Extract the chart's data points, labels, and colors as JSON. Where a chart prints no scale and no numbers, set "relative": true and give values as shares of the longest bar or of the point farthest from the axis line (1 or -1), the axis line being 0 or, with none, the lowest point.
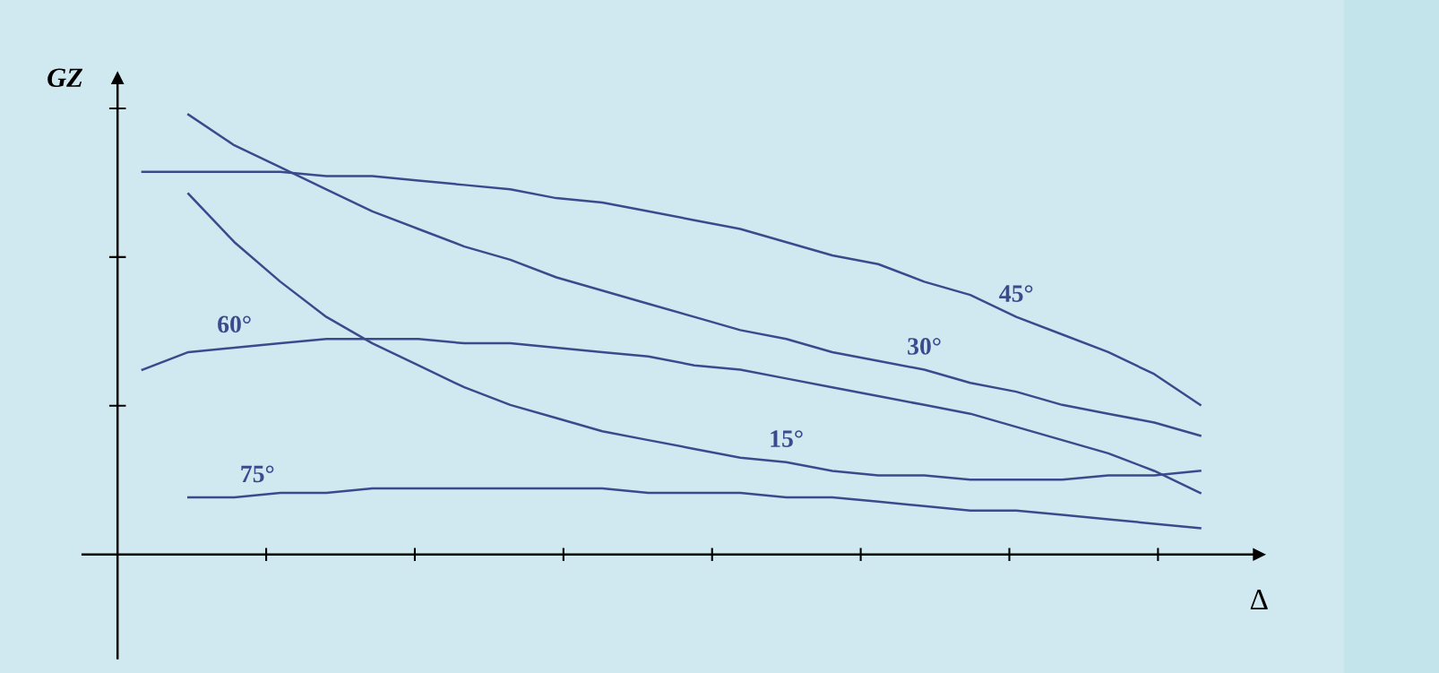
{
  "chart_data": {
    "type": "line",
    "relative": true,
    "xlabel": "Δ",
    "ylabel": "GZ",
    "categories": [
      null,
      null,
      null,
      null,
      null,
      null,
      null,
      null,
      null,
      null,
      null,
      null,
      null,
      null,
      null,
      null,
      null,
      null,
      null,
      null,
      null,
      null,
      null,
      null
    ],
    "series": [
      {
        "name": "45°",
        "color": "#3b4a8c",
        "values": [
          0.87,
          0.87,
          0.87,
          0.87,
          0.86,
          0.86,
          0.85,
          0.84,
          0.83,
          0.81,
          0.8,
          0.78,
          0.76,
          0.74,
          0.71,
          0.68,
          0.66,
          0.62,
          0.59,
          0.54,
          0.5,
          0.46,
          0.41,
          0.34
        ]
      },
      {
        "name": "30°",
        "color": "#3b4a8c",
        "values": [
          null,
          1,
          0.93,
          0.88,
          0.83,
          0.78,
          0.74,
          0.7,
          0.67,
          0.63,
          0.6,
          0.57,
          0.54,
          0.51,
          0.49,
          0.46,
          0.44,
          0.42,
          0.39,
          0.37,
          0.34,
          0.32,
          0.3,
          0.27
        ]
      },
      {
        "name": "15°",
        "color": "#3b4a8c",
        "values": [
          null,
          0.82,
          0.71,
          0.62,
          0.54,
          0.48,
          0.43,
          0.38,
          0.34,
          0.31,
          0.28,
          0.26,
          0.24,
          0.22,
          0.21,
          0.19,
          0.18,
          0.18,
          0.17,
          0.17,
          0.17,
          0.18,
          0.18,
          0.19
        ]
      },
      {
        "name": "60°",
        "color": "#3b4a8c",
        "values": [
          0.42,
          0.46,
          0.47,
          0.48,
          0.49,
          0.49,
          0.49,
          0.48,
          0.48,
          0.47,
          0.46,
          0.45,
          0.43,
          0.42,
          0.4,
          0.38,
          0.36,
          0.34,
          0.32,
          0.29,
          0.26,
          0.23,
          0.19,
          0.14
        ]
      },
      {
        "name": "75°",
        "color": "#3b4a8c",
        "values": [
          null,
          0.13,
          0.13,
          0.14,
          0.14,
          0.15,
          0.15,
          0.15,
          0.15,
          0.15,
          0.15,
          0.14,
          0.14,
          0.14,
          0.13,
          0.13,
          0.12,
          0.11,
          0.1,
          0.1,
          0.09,
          0.08,
          0.07,
          0.06
        ]
      }
    ],
    "marker": "none",
    "line_style": "solid",
    "legend": false
  }
}
